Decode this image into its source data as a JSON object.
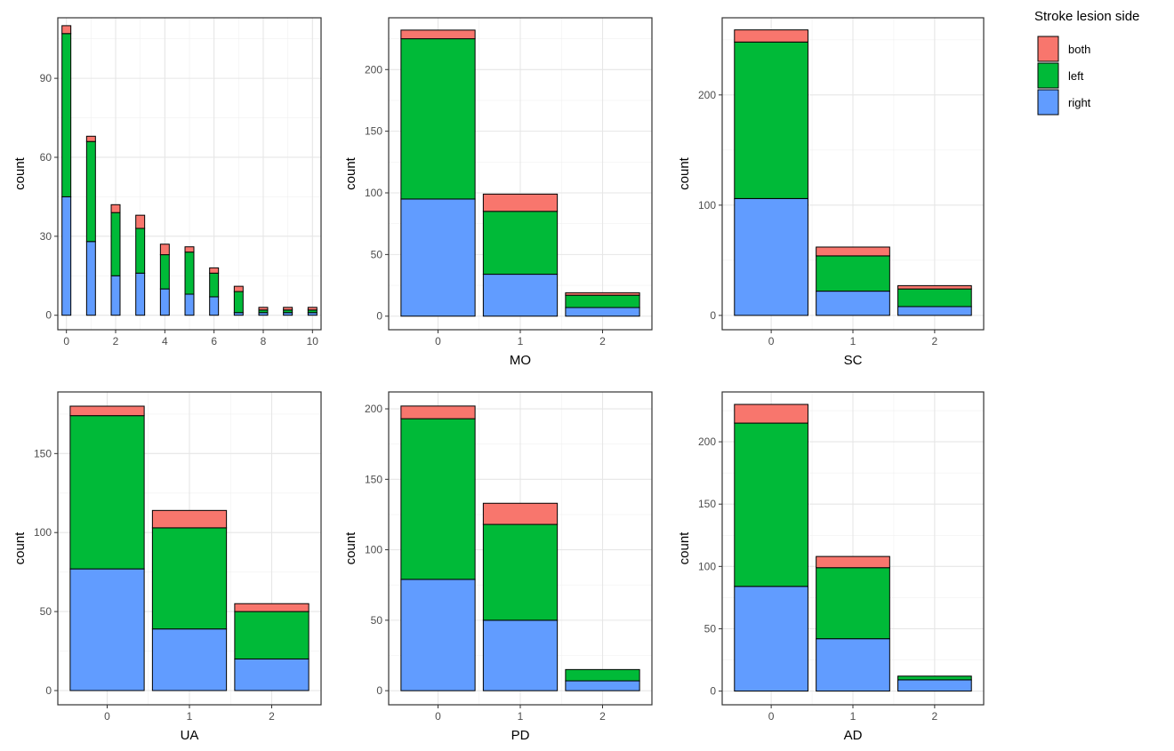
{
  "legend": {
    "title": "Stroke lesion side",
    "items": [
      {
        "key": "both",
        "label": "both",
        "color": "#F8766D"
      },
      {
        "key": "left",
        "label": "left",
        "color": "#00BA38"
      },
      {
        "key": "right",
        "label": "right",
        "color": "#619CFF"
      }
    ]
  },
  "chart_data": [
    {
      "type": "bar",
      "stacked": true,
      "title": "",
      "xlabel": "",
      "ylabel": "count",
      "x_continuous": true,
      "xlim": [
        -0.35,
        10.35
      ],
      "xticks": [
        0,
        2,
        4,
        6,
        8,
        10
      ],
      "ylim": [
        -5.5,
        113
      ],
      "yticks": [
        0,
        30,
        60,
        90
      ],
      "bar_width": 0.36,
      "categories": [
        0,
        1,
        2,
        3,
        4,
        5,
        6,
        7,
        8,
        9,
        10
      ],
      "series": [
        {
          "name": "right",
          "values": [
            45,
            28,
            15,
            16,
            10,
            8,
            7,
            1,
            1,
            1,
            1
          ]
        },
        {
          "name": "left",
          "values": [
            62,
            38,
            24,
            17,
            13,
            16,
            9,
            8,
            1,
            1,
            1
          ]
        },
        {
          "name": "both",
          "values": [
            3,
            2,
            3,
            5,
            4,
            2,
            2,
            2,
            1,
            1,
            1
          ]
        }
      ],
      "grid": true
    },
    {
      "type": "bar",
      "stacked": true,
      "title": "",
      "xlabel": "MO",
      "ylabel": "count",
      "ylim": [
        -11,
        242
      ],
      "yticks": [
        0,
        50,
        100,
        150,
        200
      ],
      "categories": [
        "0",
        "1",
        "2"
      ],
      "series": [
        {
          "name": "right",
          "values": [
            95,
            34,
            7
          ]
        },
        {
          "name": "left",
          "values": [
            130,
            51,
            10
          ]
        },
        {
          "name": "both",
          "values": [
            7,
            14,
            2
          ]
        }
      ],
      "grid": true
    },
    {
      "type": "bar",
      "stacked": true,
      "title": "",
      "xlabel": "SC",
      "ylabel": "count",
      "ylim": [
        -13,
        270
      ],
      "yticks": [
        0,
        100,
        200
      ],
      "categories": [
        "0",
        "1",
        "2"
      ],
      "series": [
        {
          "name": "right",
          "values": [
            106,
            22,
            8
          ]
        },
        {
          "name": "left",
          "values": [
            142,
            32,
            16
          ]
        },
        {
          "name": "both",
          "values": [
            11,
            8,
            3
          ]
        }
      ],
      "grid": true
    },
    {
      "type": "bar",
      "stacked": true,
      "title": "",
      "xlabel": "UA",
      "ylabel": "count",
      "ylim": [
        -9,
        189
      ],
      "yticks": [
        0,
        50,
        100,
        150
      ],
      "categories": [
        "0",
        "1",
        "2"
      ],
      "series": [
        {
          "name": "right",
          "values": [
            77,
            39,
            20
          ]
        },
        {
          "name": "left",
          "values": [
            97,
            64,
            30
          ]
        },
        {
          "name": "both",
          "values": [
            6,
            11,
            5
          ]
        }
      ],
      "grid": true
    },
    {
      "type": "bar",
      "stacked": true,
      "title": "",
      "xlabel": "PD",
      "ylabel": "count",
      "ylim": [
        -10,
        212
      ],
      "yticks": [
        0,
        50,
        100,
        150,
        200
      ],
      "categories": [
        "0",
        "1",
        "2"
      ],
      "series": [
        {
          "name": "right",
          "values": [
            79,
            50,
            7
          ]
        },
        {
          "name": "left",
          "values": [
            114,
            68,
            8
          ]
        },
        {
          "name": "both",
          "values": [
            9,
            15,
            0
          ]
        }
      ],
      "grid": true
    },
    {
      "type": "bar",
      "stacked": true,
      "title": "",
      "xlabel": "AD",
      "ylabel": "count",
      "ylim": [
        -11,
        240
      ],
      "yticks": [
        0,
        50,
        100,
        150,
        200
      ],
      "categories": [
        "0",
        "1",
        "2"
      ],
      "series": [
        {
          "name": "right",
          "values": [
            84,
            42,
            9
          ]
        },
        {
          "name": "left",
          "values": [
            131,
            57,
            3
          ]
        },
        {
          "name": "both",
          "values": [
            15,
            9,
            0
          ]
        }
      ],
      "grid": true
    }
  ]
}
